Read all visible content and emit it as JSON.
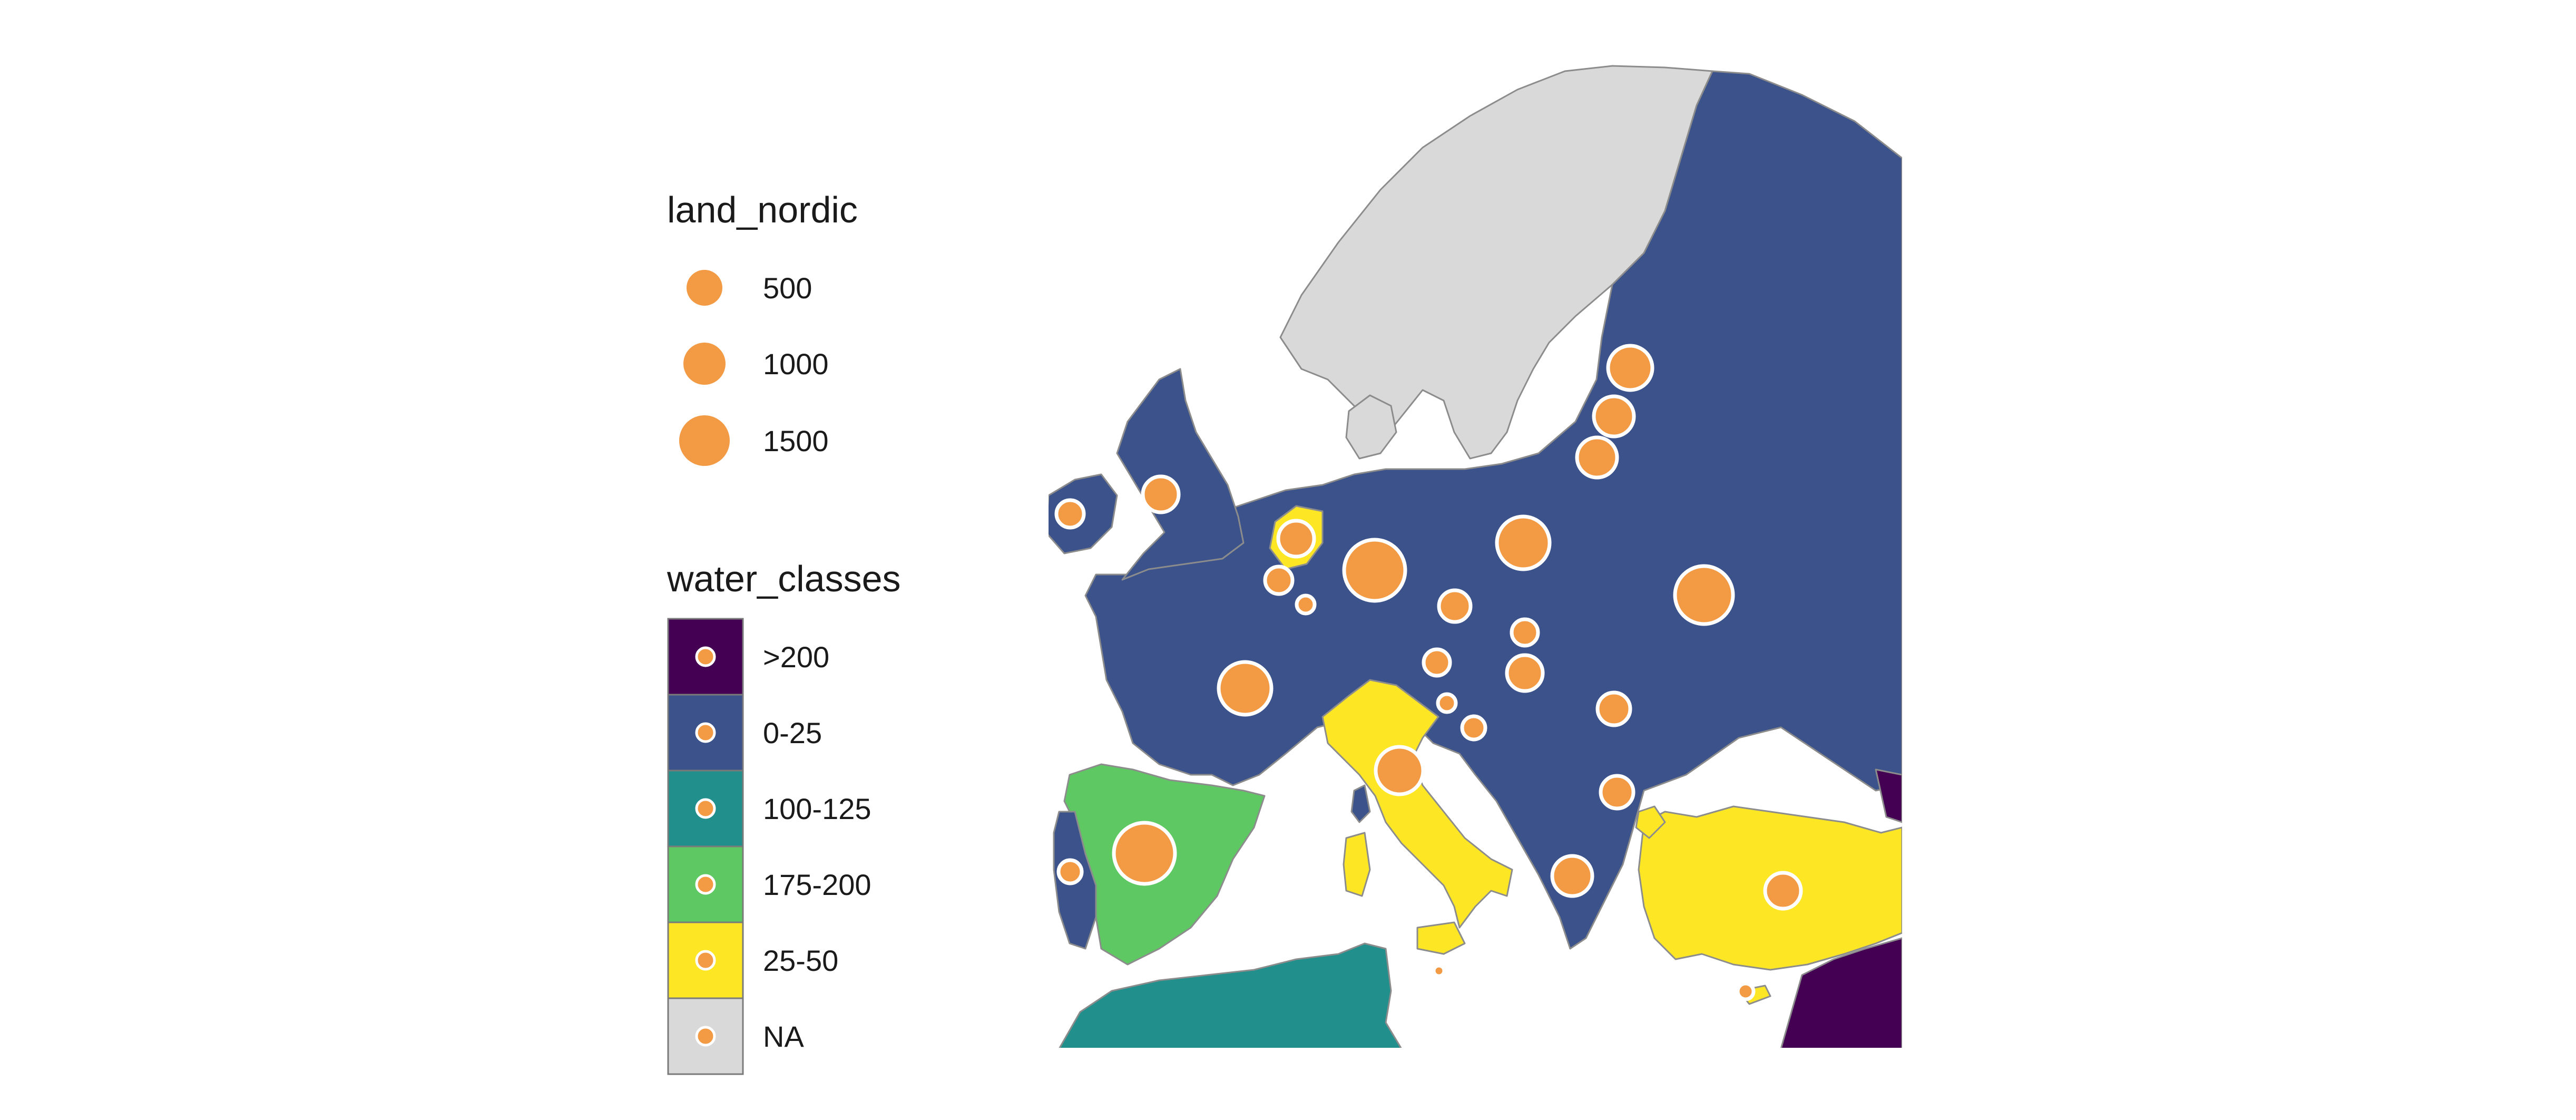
{
  "legend": {
    "size_title": "land_nordic",
    "size_items": [
      {
        "label": "500",
        "value": 500
      },
      {
        "label": "1000",
        "value": 1000
      },
      {
        "label": "1500",
        "value": 1500
      }
    ],
    "fill_title": "water_classes",
    "fill_items": [
      {
        "label": ">200",
        "color": "#440154"
      },
      {
        "label": "0-25",
        "color": "#3b528b"
      },
      {
        "label": "100-125",
        "color": "#21908c"
      },
      {
        "label": "175-200",
        "color": "#5ec962"
      },
      {
        "label": "25-50",
        "color": "#fde725"
      },
      {
        "label": "NA",
        "color": "#d9d9d9"
      }
    ]
  },
  "colors": {
    "bubble": "#f39a45",
    "na_land": "#d9d9d9",
    "background": "#ffffff"
  }
}
